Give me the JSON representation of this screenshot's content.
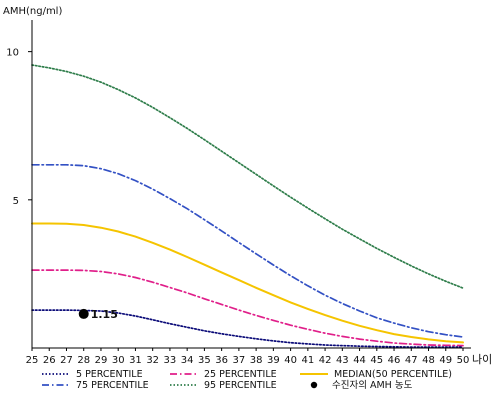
{
  "chart_data": {
    "type": "line",
    "ylabel": "AMH(ng/ml)",
    "xlabel": "나이",
    "x": [
      25,
      26,
      27,
      28,
      29,
      30,
      31,
      32,
      33,
      34,
      35,
      36,
      37,
      38,
      39,
      40,
      41,
      42,
      43,
      44,
      45,
      46,
      47,
      48,
      49,
      50
    ],
    "xlim": [
      25,
      50
    ],
    "ylim": [
      0,
      11
    ],
    "yticks": [
      5,
      10
    ],
    "grid": false,
    "legend_position": "bottom",
    "series": [
      {
        "name": "5 PERCENTILE",
        "color": "#0a0a78",
        "dash": "dotted",
        "values": [
          1.28,
          1.28,
          1.28,
          1.27,
          1.25,
          1.18,
          1.08,
          0.95,
          0.82,
          0.7,
          0.58,
          0.48,
          0.39,
          0.31,
          0.24,
          0.18,
          0.14,
          0.1,
          0.08,
          0.06,
          0.05,
          0.04,
          0.03,
          0.03,
          0.03,
          0.03
        ]
      },
      {
        "name": "25 PERCENTILE",
        "color": "#e01f8a",
        "dash": "dashdot",
        "values": [
          2.63,
          2.63,
          2.63,
          2.62,
          2.58,
          2.5,
          2.38,
          2.22,
          2.04,
          1.86,
          1.66,
          1.47,
          1.28,
          1.1,
          0.93,
          0.77,
          0.63,
          0.5,
          0.39,
          0.3,
          0.23,
          0.17,
          0.13,
          0.1,
          0.09,
          0.08
        ]
      },
      {
        "name": "MEDIAN(50 PERCENTILE)",
        "color": "#f5c400",
        "dash": "solid",
        "values": [
          4.2,
          4.2,
          4.19,
          4.15,
          4.06,
          3.93,
          3.76,
          3.55,
          3.32,
          3.07,
          2.81,
          2.55,
          2.29,
          2.03,
          1.78,
          1.54,
          1.32,
          1.11,
          0.92,
          0.75,
          0.6,
          0.47,
          0.37,
          0.29,
          0.23,
          0.19
        ]
      },
      {
        "name": "75 PERCENTILE",
        "color": "#3351c4",
        "dash": "dashdot",
        "values": [
          6.18,
          6.18,
          6.18,
          6.15,
          6.05,
          5.88,
          5.65,
          5.36,
          5.04,
          4.7,
          4.33,
          3.95,
          3.56,
          3.18,
          2.8,
          2.44,
          2.1,
          1.78,
          1.5,
          1.25,
          1.02,
          0.84,
          0.68,
          0.55,
          0.45,
          0.37
        ]
      },
      {
        "name": "95 PERCENTILE",
        "color": "#2e7d4a",
        "dash": "dotted",
        "values": [
          9.55,
          9.45,
          9.33,
          9.17,
          8.97,
          8.72,
          8.44,
          8.12,
          7.77,
          7.41,
          7.03,
          6.64,
          6.25,
          5.86,
          5.47,
          5.09,
          4.72,
          4.36,
          4.01,
          3.68,
          3.36,
          3.06,
          2.77,
          2.5,
          2.25,
          2.02
        ]
      }
    ],
    "marker": {
      "name": "수진자의 AMH 농도",
      "x": 28,
      "y": 1.15,
      "label": "1.15",
      "color": "#000000"
    },
    "legend_order": [
      "5 PERCENTILE",
      "25 PERCENTILE",
      "MEDIAN(50 PERCENTILE)",
      "75 PERCENTILE",
      "95 PERCENTILE",
      "수진자의 AMH 농도"
    ]
  }
}
